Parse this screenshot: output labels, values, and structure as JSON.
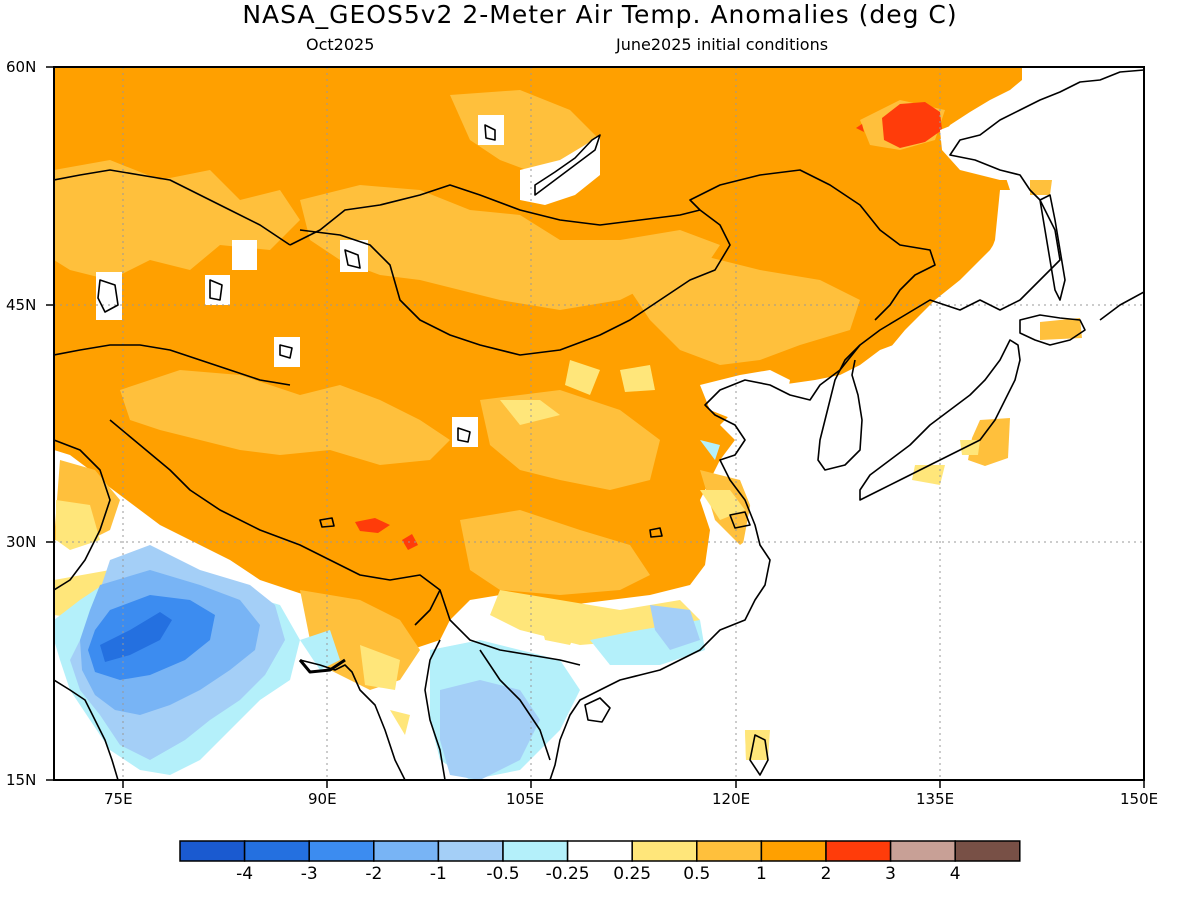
{
  "header": {
    "title": "NASA_GEOS5v2 2-Meter Air Temp. Anomalies (deg C)",
    "valid_month": "Oct2025",
    "init_conditions": "June2025 initial conditions"
  },
  "map": {
    "lon_range": [
      70,
      150
    ],
    "lat_range": [
      15,
      60
    ],
    "x_ticks": [
      "75E",
      "90E",
      "105E",
      "120E",
      "135E",
      "150E"
    ],
    "y_ticks": [
      "60N",
      "45N",
      "30N",
      "15N"
    ],
    "gridlines": "dotted",
    "variable": "2-meter air temperature anomaly",
    "units": "deg C"
  },
  "colorbar": {
    "labels": [
      "-4",
      "-3",
      "-2",
      "-1",
      "-0.5",
      "-0.25",
      "0.25",
      "0.5",
      "1",
      "2",
      "3",
      "4"
    ],
    "colors": [
      "#1a5ad0",
      "#2470e0",
      "#3c8cf0",
      "#78b4f5",
      "#a4cff7",
      "#b4f0fa",
      "#ffffff",
      "#ffe67a",
      "#ffc03c",
      "#ffa000",
      "#ff3c0a",
      "#c8a096",
      "#785046"
    ]
  },
  "features": {
    "coastline_color": "#000000",
    "land_mask_color": "#ffffff"
  }
}
